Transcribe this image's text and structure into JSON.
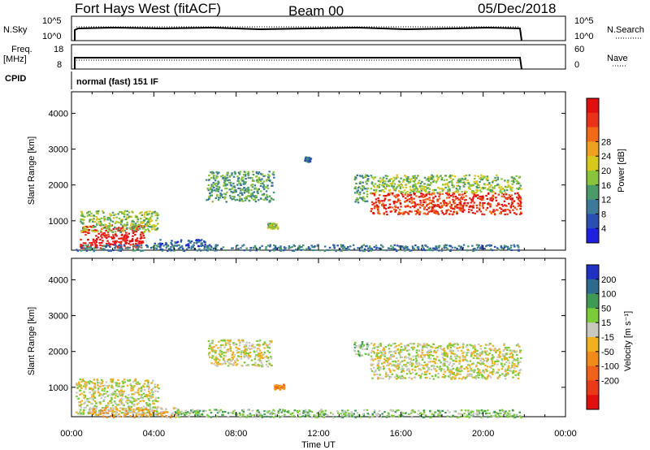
{
  "header": {
    "title": "Fort Hays West (fitACF)",
    "beam": "Beam 00",
    "date": "05/Dec/2018"
  },
  "params": {
    "nsky_label": "N.Sky",
    "nsky_ticks": [
      "10^5",
      "10^0"
    ],
    "nsearch_label": "N.Search",
    "freq_label_1": "Freq.",
    "freq_label_2": "[MHz]",
    "freq_ticks": [
      "18",
      "8"
    ],
    "nave_label": "Nave",
    "nave_ticks": [
      "60",
      "0"
    ],
    "cpid_label": "CPID",
    "cpid_value": "normal (fast) 151 IF"
  },
  "chart_data": [
    {
      "type": "heatmap",
      "name": "Power",
      "ylabel": "Slant Range [km]",
      "xlabel": "Time UT",
      "x_ticks": [
        "00:00",
        "04:00",
        "08:00",
        "12:00",
        "16:00",
        "20:00",
        "00:00"
      ],
      "y_ticks": [
        "1000",
        "2000",
        "3000",
        "4000"
      ],
      "ylim": [
        180,
        4600
      ],
      "xlim_hours": [
        0,
        24
      ],
      "colorbar": {
        "label": "Power [dB]",
        "ticks": [
          "4",
          "8",
          "12",
          "16",
          "20",
          "24",
          "28"
        ],
        "colors": [
          "#1f1fe0",
          "#2a4fb0",
          "#3d7a9a",
          "#4c9a6a",
          "#8ac43c",
          "#d8c81e",
          "#f0a020",
          "#f06a18",
          "#e83318",
          "#e01010"
        ]
      },
      "echo_regions": [
        {
          "t0": 0.4,
          "t1": 3.5,
          "r0": 250,
          "r1": 900,
          "level": 9
        },
        {
          "t0": 0.4,
          "t1": 4.2,
          "r0": 700,
          "r1": 1300,
          "level": 4
        },
        {
          "t0": 4.0,
          "t1": 6.5,
          "r0": 300,
          "r1": 500,
          "level": 1
        },
        {
          "t0": 6.5,
          "t1": 9.8,
          "r0": 1550,
          "r1": 2400,
          "level": 3
        },
        {
          "t0": 9.5,
          "t1": 10.0,
          "r0": 800,
          "r1": 950,
          "level": 4
        },
        {
          "t0": 11.3,
          "t1": 11.6,
          "r0": 2650,
          "r1": 2800,
          "level": 2
        },
        {
          "t0": 13.7,
          "t1": 14.4,
          "r0": 1500,
          "r1": 2300,
          "level": 3
        },
        {
          "t0": 14.5,
          "t1": 21.8,
          "r0": 1200,
          "r1": 1800,
          "level": 8
        },
        {
          "t0": 14.5,
          "t1": 21.8,
          "r0": 1800,
          "r1": 2300,
          "level": 4
        },
        {
          "t0": 0.2,
          "t1": 21.8,
          "r0": 180,
          "r1": 350,
          "level": 2
        }
      ]
    },
    {
      "type": "heatmap",
      "name": "Velocity",
      "ylabel": "Slant Range [km]",
      "xlabel": "Time UT",
      "x_ticks": [
        "00:00",
        "04:00",
        "08:00",
        "12:00",
        "16:00",
        "20:00",
        "00:00"
      ],
      "y_ticks": [
        "1000",
        "2000",
        "3000",
        "4000"
      ],
      "ylim": [
        180,
        4600
      ],
      "xlim_hours": [
        0,
        24
      ],
      "colorbar": {
        "label": "Velocity [m s⁻¹]",
        "ticks": [
          "200",
          "100",
          "50",
          "15",
          "-15",
          "-50",
          "-100",
          "-200"
        ],
        "colors": [
          "#2030c0",
          "#2d6a8e",
          "#3f9a55",
          "#7ccc3a",
          "#c8c8c0",
          "#f0b020",
          "#f08a1a",
          "#f0621a",
          "#e83a18",
          "#e01010"
        ]
      },
      "echo_regions": [
        {
          "t0": 0.2,
          "t1": 4.2,
          "r0": 250,
          "r1": 1250,
          "level": 4
        },
        {
          "t0": 0.8,
          "t1": 5.2,
          "r0": 180,
          "r1": 450,
          "level": 5
        },
        {
          "t0": 6.6,
          "t1": 9.7,
          "r0": 1600,
          "r1": 2350,
          "level": 4
        },
        {
          "t0": 9.8,
          "t1": 10.3,
          "r0": 950,
          "r1": 1100,
          "level": 6
        },
        {
          "t0": 13.7,
          "t1": 14.4,
          "r0": 1900,
          "r1": 2300,
          "level": 3
        },
        {
          "t0": 14.5,
          "t1": 21.8,
          "r0": 1250,
          "r1": 2250,
          "level": 4
        },
        {
          "t0": 5.0,
          "t1": 21.8,
          "r0": 180,
          "r1": 400,
          "level": 3
        }
      ]
    }
  ]
}
